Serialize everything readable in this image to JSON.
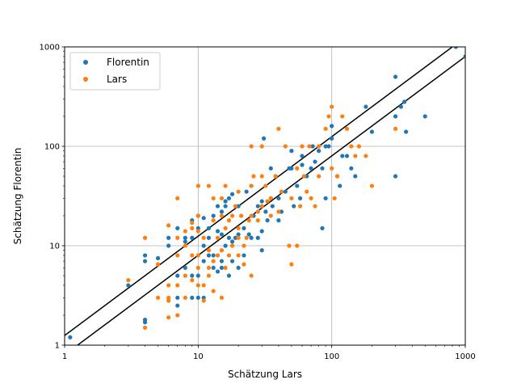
{
  "chart_data": {
    "type": "scatter",
    "title": "",
    "xlabel": "Schätzung Lars",
    "ylabel": "Schätzung Florentin",
    "xscale": "log",
    "yscale": "log",
    "xlim": [
      1,
      1000
    ],
    "ylim": [
      1,
      1000
    ],
    "xticks": [
      "1",
      "10",
      "100",
      "1000"
    ],
    "yticks": [
      "1",
      "10",
      "100",
      "1000"
    ],
    "grid": true,
    "legend_position": "top-left",
    "series": [
      {
        "name": "Florentin",
        "color": "#1f77b4",
        "points": [
          [
            1.1,
            1.2
          ],
          [
            3,
            4
          ],
          [
            4,
            1.7
          ],
          [
            4,
            1.8
          ],
          [
            4,
            7
          ],
          [
            4,
            8
          ],
          [
            5,
            7.5
          ],
          [
            6,
            10
          ],
          [
            6,
            12
          ],
          [
            7,
            2.5
          ],
          [
            7,
            3
          ],
          [
            7,
            5
          ],
          [
            7,
            15
          ],
          [
            8,
            6
          ],
          [
            8,
            11
          ],
          [
            8,
            12
          ],
          [
            9,
            3
          ],
          [
            9,
            5
          ],
          [
            9,
            18
          ],
          [
            9,
            12
          ],
          [
            10,
            3
          ],
          [
            10,
            5
          ],
          [
            10,
            15
          ],
          [
            10,
            20
          ],
          [
            11,
            3
          ],
          [
            11,
            7
          ],
          [
            11,
            10
          ],
          [
            11,
            19
          ],
          [
            12,
            8
          ],
          [
            12,
            12
          ],
          [
            12,
            15
          ],
          [
            13,
            6
          ],
          [
            13,
            8
          ],
          [
            13,
            20
          ],
          [
            14,
            5.5
          ],
          [
            14,
            14
          ],
          [
            14,
            25
          ],
          [
            15,
            6
          ],
          [
            15,
            7
          ],
          [
            15,
            13
          ],
          [
            15,
            22
          ],
          [
            16,
            10
          ],
          [
            16,
            25
          ],
          [
            16,
            28
          ],
          [
            17,
            5
          ],
          [
            17,
            12
          ],
          [
            17,
            30
          ],
          [
            18,
            7
          ],
          [
            18,
            11
          ],
          [
            18,
            33
          ],
          [
            19,
            12
          ],
          [
            20,
            6
          ],
          [
            20,
            13
          ],
          [
            20,
            25
          ],
          [
            22,
            8
          ],
          [
            22,
            15
          ],
          [
            23,
            35
          ],
          [
            24,
            13
          ],
          [
            25,
            12
          ],
          [
            25,
            40
          ],
          [
            26,
            20
          ],
          [
            28,
            12
          ],
          [
            28,
            25
          ],
          [
            30,
            9
          ],
          [
            30,
            14
          ],
          [
            30,
            28
          ],
          [
            31,
            120
          ],
          [
            32,
            22
          ],
          [
            33,
            18
          ],
          [
            35,
            30
          ],
          [
            35,
            60
          ],
          [
            36,
            25
          ],
          [
            38,
            50
          ],
          [
            40,
            18
          ],
          [
            40,
            30
          ],
          [
            42,
            22
          ],
          [
            45,
            35
          ],
          [
            48,
            60
          ],
          [
            50,
            60
          ],
          [
            50,
            90
          ],
          [
            52,
            25
          ],
          [
            55,
            40
          ],
          [
            58,
            30
          ],
          [
            60,
            65
          ],
          [
            60,
            80
          ],
          [
            65,
            50
          ],
          [
            70,
            60
          ],
          [
            72,
            100
          ],
          [
            75,
            70
          ],
          [
            80,
            90
          ],
          [
            85,
            15
          ],
          [
            85,
            60
          ],
          [
            90,
            30
          ],
          [
            90,
            100
          ],
          [
            95,
            100
          ],
          [
            100,
            120
          ],
          [
            100,
            160
          ],
          [
            110,
            50
          ],
          [
            115,
            40
          ],
          [
            120,
            80
          ],
          [
            130,
            80
          ],
          [
            140,
            60
          ],
          [
            150,
            50
          ],
          [
            180,
            250
          ],
          [
            200,
            140
          ],
          [
            300,
            500
          ],
          [
            300,
            50
          ],
          [
            300,
            200
          ],
          [
            330,
            250
          ],
          [
            350,
            280
          ],
          [
            360,
            140
          ],
          [
            500,
            200
          ],
          [
            850,
            1000
          ],
          [
            1000,
            800
          ]
        ]
      },
      {
        "name": "Lars",
        "color": "#ff7f0e",
        "points": [
          [
            3,
            4.5
          ],
          [
            4,
            12
          ],
          [
            4,
            1.5
          ],
          [
            5,
            3
          ],
          [
            5,
            6.5
          ],
          [
            6,
            1.9
          ],
          [
            6,
            2.8
          ],
          [
            6,
            3
          ],
          [
            6,
            4
          ],
          [
            6,
            16
          ],
          [
            7,
            2
          ],
          [
            7,
            4
          ],
          [
            7,
            8
          ],
          [
            7,
            12
          ],
          [
            7,
            30
          ],
          [
            8,
            3
          ],
          [
            8,
            5
          ],
          [
            8,
            10
          ],
          [
            8,
            14
          ],
          [
            9,
            4.5
          ],
          [
            9,
            8
          ],
          [
            9,
            15
          ],
          [
            9,
            17
          ],
          [
            10,
            4
          ],
          [
            10,
            6
          ],
          [
            10,
            8
          ],
          [
            10,
            14
          ],
          [
            10,
            20
          ],
          [
            10,
            40
          ],
          [
            11,
            2.8
          ],
          [
            11,
            4
          ],
          [
            11,
            12
          ],
          [
            12,
            5
          ],
          [
            12,
            6
          ],
          [
            12,
            9
          ],
          [
            12,
            40
          ],
          [
            13,
            3.5
          ],
          [
            13,
            7
          ],
          [
            13,
            30
          ],
          [
            13,
            18
          ],
          [
            14,
            8
          ],
          [
            14,
            12
          ],
          [
            15,
            3
          ],
          [
            15,
            9
          ],
          [
            15,
            20
          ],
          [
            15,
            30
          ],
          [
            16,
            6
          ],
          [
            16,
            15
          ],
          [
            16,
            40
          ],
          [
            17,
            8
          ],
          [
            17,
            18
          ],
          [
            18,
            10
          ],
          [
            18,
            20
          ],
          [
            19,
            25
          ],
          [
            20,
            8
          ],
          [
            20,
            12
          ],
          [
            20,
            15
          ],
          [
            20,
            35
          ],
          [
            21,
            20
          ],
          [
            22,
            6.5
          ],
          [
            22,
            10
          ],
          [
            23,
            12
          ],
          [
            24,
            18
          ],
          [
            25,
            5
          ],
          [
            25,
            20
          ],
          [
            25,
            40
          ],
          [
            25,
            100
          ],
          [
            26,
            50
          ],
          [
            28,
            18
          ],
          [
            28,
            22
          ],
          [
            30,
            25
          ],
          [
            30,
            50
          ],
          [
            30,
            100
          ],
          [
            32,
            40
          ],
          [
            33,
            28
          ],
          [
            35,
            20
          ],
          [
            35,
            30
          ],
          [
            38,
            50
          ],
          [
            40,
            150
          ],
          [
            40,
            22
          ],
          [
            42,
            35
          ],
          [
            45,
            100
          ],
          [
            48,
            10
          ],
          [
            50,
            6.5
          ],
          [
            50,
            30
          ],
          [
            55,
            10
          ],
          [
            55,
            60
          ],
          [
            58,
            25
          ],
          [
            60,
            100
          ],
          [
            62,
            50
          ],
          [
            65,
            35
          ],
          [
            68,
            100
          ],
          [
            70,
            30
          ],
          [
            75,
            25
          ],
          [
            80,
            100
          ],
          [
            80,
            50
          ],
          [
            90,
            150
          ],
          [
            95,
            200
          ],
          [
            100,
            250
          ],
          [
            100,
            60
          ],
          [
            105,
            30
          ],
          [
            110,
            50
          ],
          [
            120,
            200
          ],
          [
            130,
            150
          ],
          [
            140,
            100
          ],
          [
            150,
            80
          ],
          [
            160,
            100
          ],
          [
            180,
            80
          ],
          [
            200,
            40
          ],
          [
            300,
            150
          ]
        ]
      }
    ],
    "reference_lines": [
      {
        "points": [
          [
            1,
            1.25
          ],
          [
            1000,
            1250
          ]
        ],
        "color": "#000000"
      },
      {
        "points": [
          [
            1,
            0.8
          ],
          [
            1000,
            800
          ]
        ],
        "color": "#000000"
      }
    ]
  }
}
